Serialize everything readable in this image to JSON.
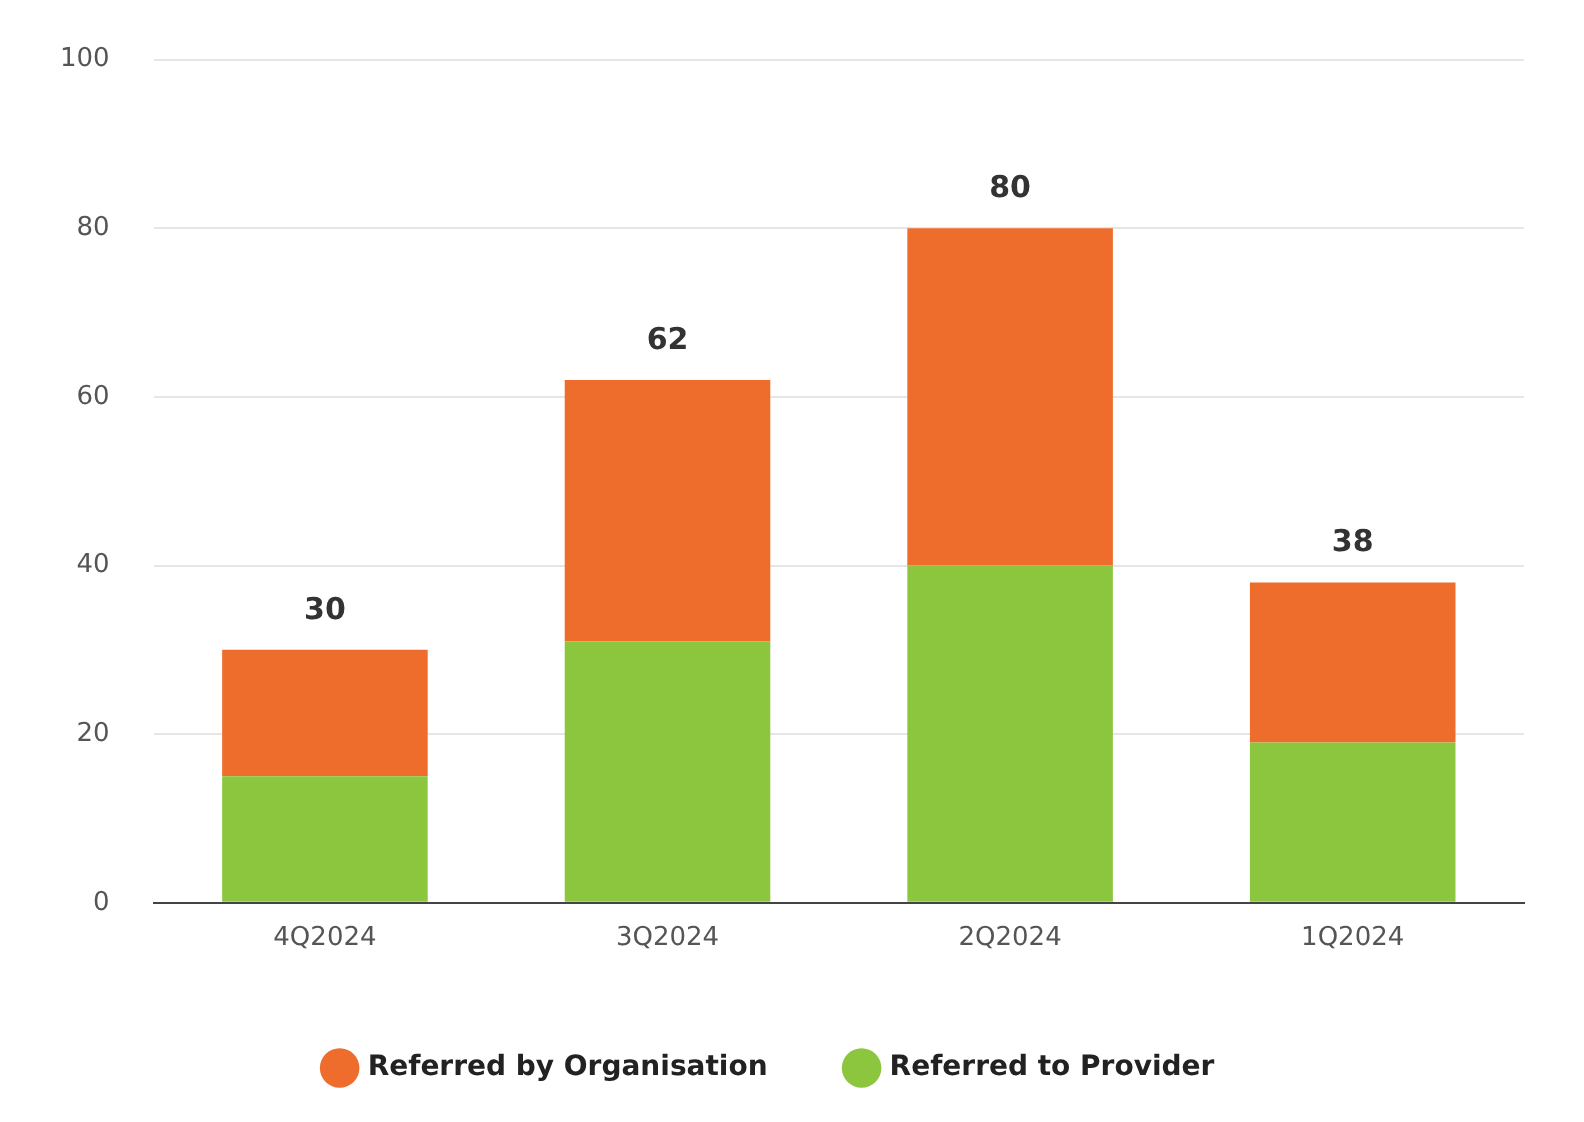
{
  "chart_data": {
    "type": "bar",
    "stacked": true,
    "categories": [
      "4Q2024",
      "3Q2024",
      "2Q2024",
      "1Q2024"
    ],
    "series": [
      {
        "name": "Referred to Provider",
        "color": "#8cc63f",
        "values": [
          15,
          31,
          40,
          19
        ]
      },
      {
        "name": "Referred by Organisation",
        "color": "#ee6c2c",
        "values": [
          15,
          31,
          40,
          19
        ]
      }
    ],
    "totals": [
      "30",
      "62",
      "80",
      "38"
    ],
    "ylim": [
      0,
      100
    ],
    "yticks": [
      0,
      20,
      40,
      60,
      80,
      100
    ],
    "grid": "y",
    "legend": "bottom"
  }
}
